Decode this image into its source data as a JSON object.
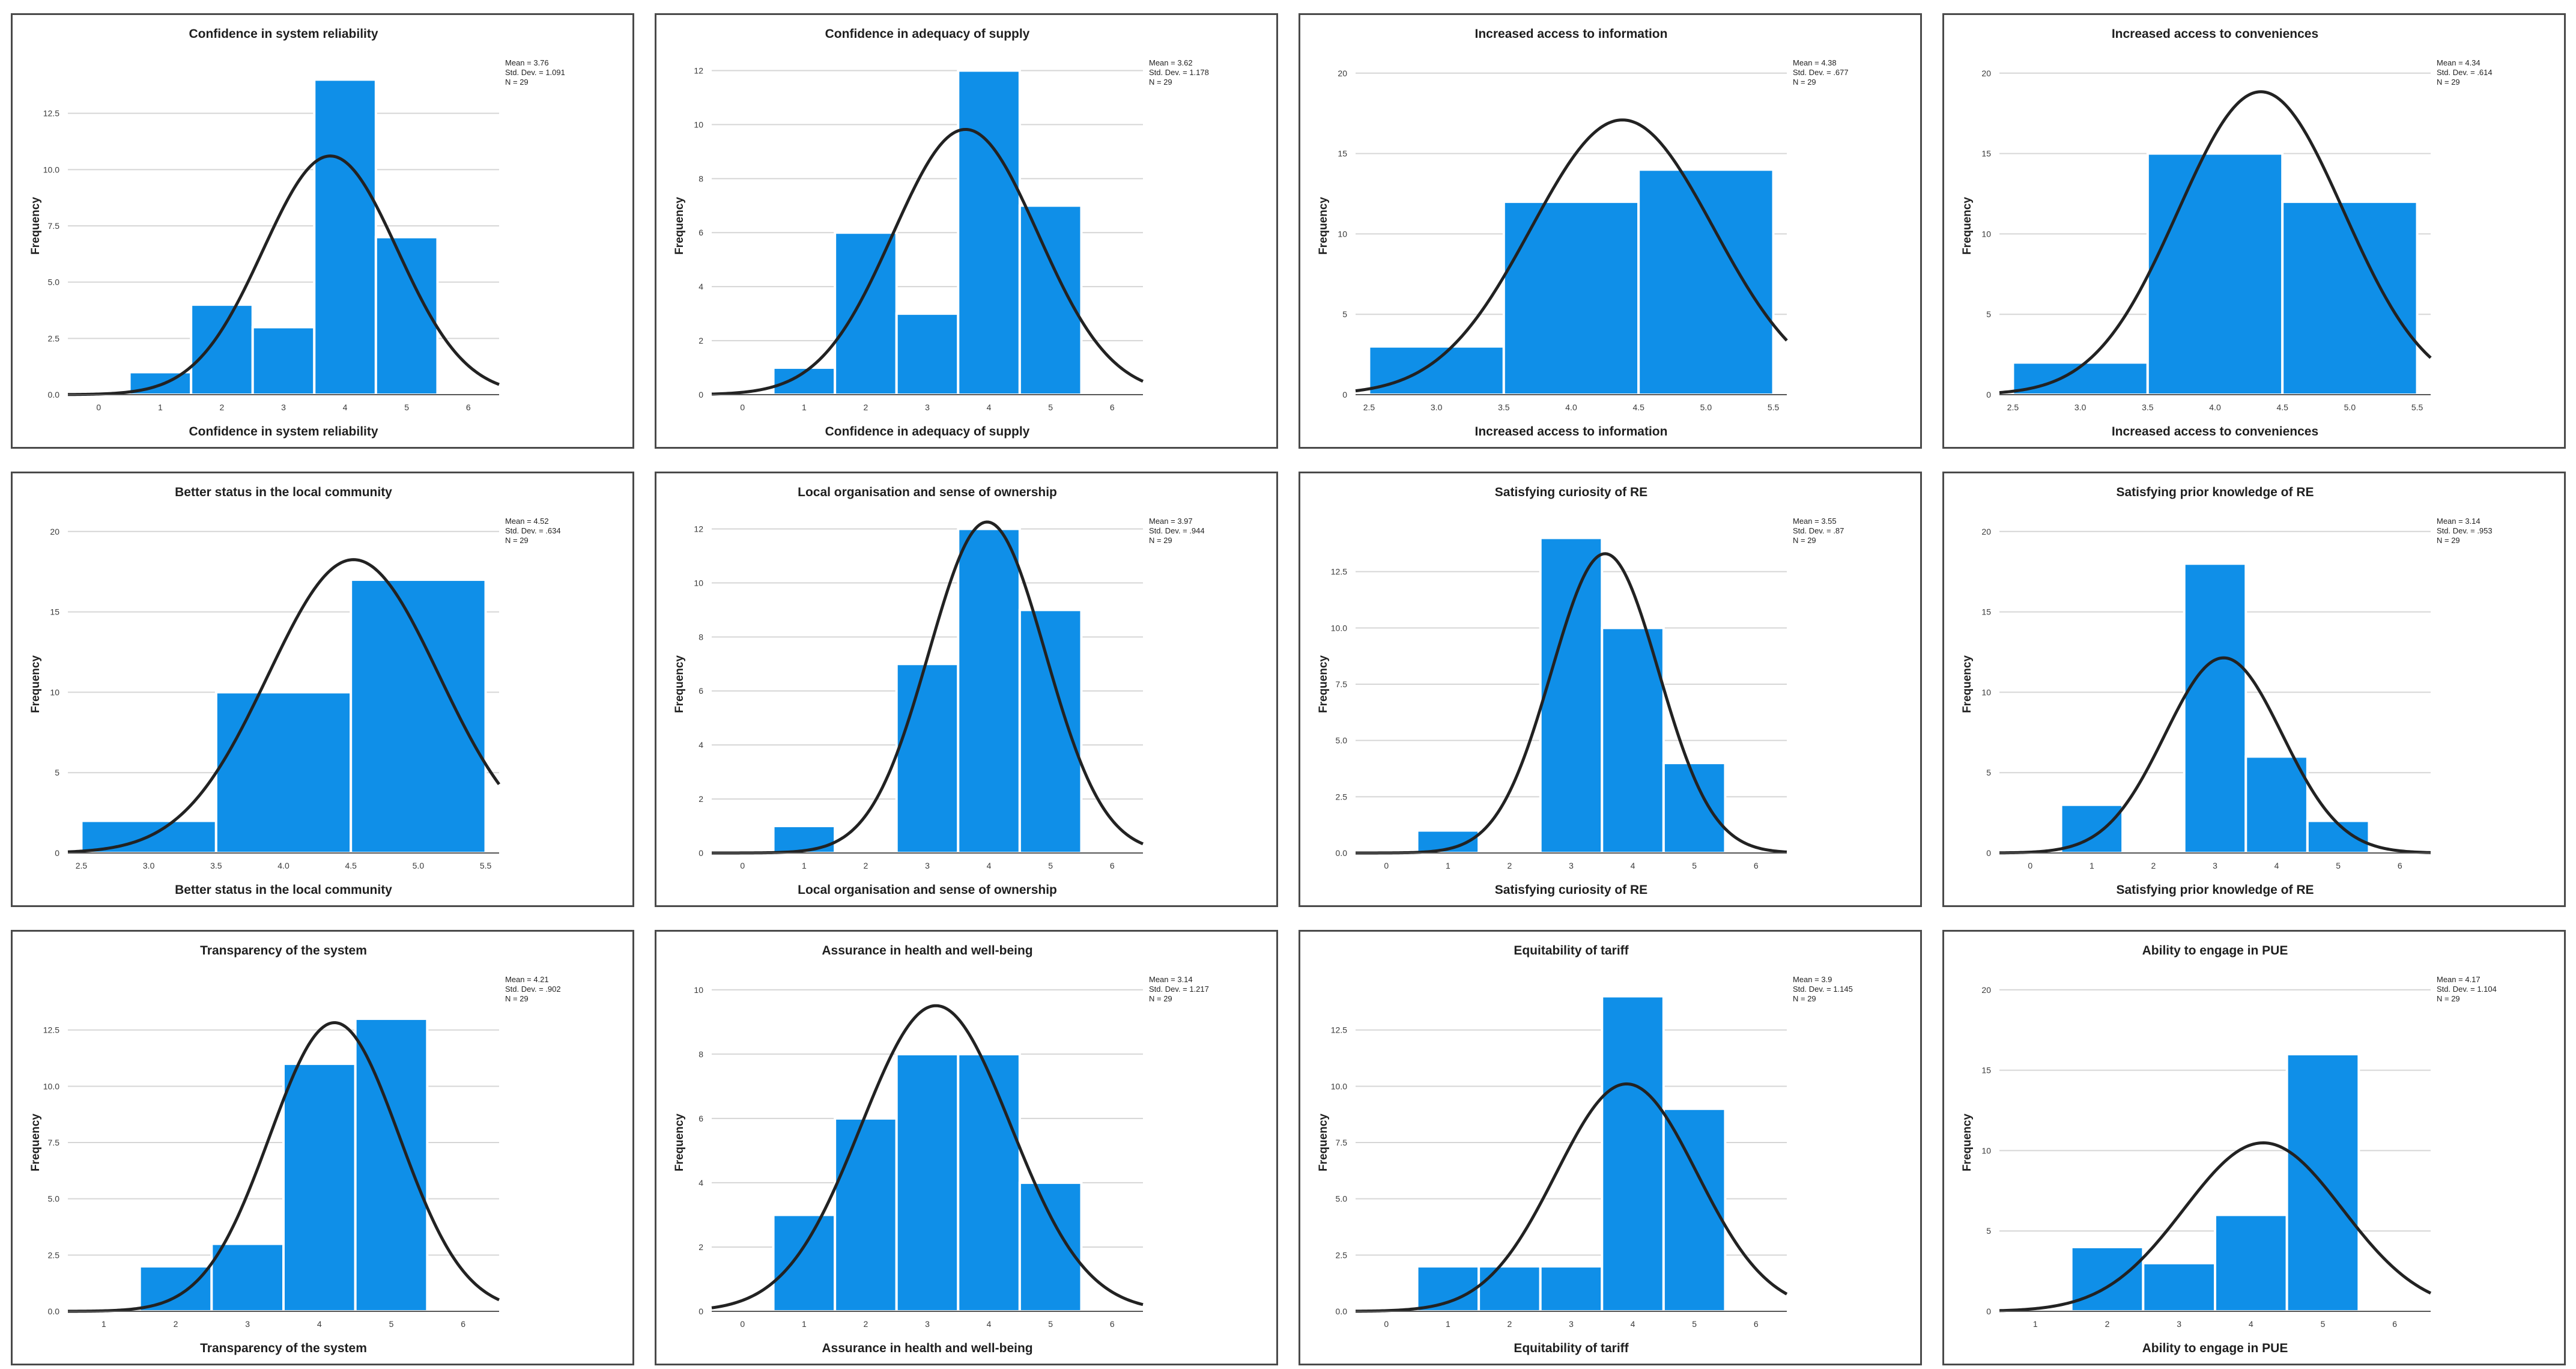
{
  "chart_data": [
    {
      "type": "bar",
      "title": "Confidence in system reliability",
      "xlabel": "Confidence in system reliability",
      "ylabel": "Frequency",
      "categories": [
        "1",
        "2",
        "3",
        "4",
        "5"
      ],
      "values": [
        1,
        4,
        3,
        14,
        7
      ],
      "bin_edges": [
        0.5,
        1.5,
        2.5,
        3.5,
        4.5,
        5.5
      ],
      "xlim": [
        -0.5,
        6.5
      ],
      "xticks": [
        "0",
        "1",
        "2",
        "3",
        "4",
        "5",
        "6"
      ],
      "xtick_values": [
        0,
        1,
        2,
        3,
        4,
        5,
        6
      ],
      "ylim": [
        0,
        15
      ],
      "yticks": [
        "0.0",
        "2.5",
        "5.0",
        "7.5",
        "10.0",
        "12.5"
      ],
      "ytick_values": [
        0,
        2.5,
        5,
        7.5,
        10,
        12.5
      ],
      "normal_curve": {
        "mean": 3.76,
        "sd": 1.091,
        "n": 29
      },
      "stats": {
        "mean": "Mean = 3.76",
        "sd": "Std. Dev. = 1.091",
        "n": "N = 29"
      }
    },
    {
      "type": "bar",
      "title": "Confidence in adequacy of supply",
      "xlabel": "Confidence in adequacy of supply",
      "ylabel": "Frequency",
      "categories": [
        "1",
        "2",
        "3",
        "4",
        "5"
      ],
      "values": [
        1,
        6,
        3,
        12,
        7
      ],
      "bin_edges": [
        0.5,
        1.5,
        2.5,
        3.5,
        4.5,
        5.5
      ],
      "xlim": [
        -0.5,
        6.5
      ],
      "xticks": [
        "0",
        "1",
        "2",
        "3",
        "4",
        "5",
        "6"
      ],
      "xtick_values": [
        0,
        1,
        2,
        3,
        4,
        5,
        6
      ],
      "ylim": [
        0,
        12.5
      ],
      "yticks": [
        "0",
        "2",
        "4",
        "6",
        "8",
        "10",
        "12"
      ],
      "ytick_values": [
        0,
        2,
        4,
        6,
        8,
        10,
        12
      ],
      "normal_curve": {
        "mean": 3.62,
        "sd": 1.178,
        "n": 29
      },
      "stats": {
        "mean": "Mean = 3.62",
        "sd": "Std. Dev. = 1.178",
        "n": "N = 29"
      }
    },
    {
      "type": "bar",
      "title": "Increased access to information",
      "xlabel": "Increased access to information",
      "ylabel": "Frequency",
      "categories": [
        "3",
        "4",
        "5"
      ],
      "values": [
        3,
        12,
        14
      ],
      "bin_edges": [
        2.5,
        3.5,
        4.5,
        5.5
      ],
      "xlim": [
        2.4,
        5.6
      ],
      "xticks": [
        "2.5",
        "3.0",
        "3.5",
        "4.0",
        "4.5",
        "5.0",
        "5.5"
      ],
      "xtick_values": [
        2.5,
        3,
        3.5,
        4,
        4.5,
        5,
        5.5
      ],
      "ylim": [
        0,
        21
      ],
      "yticks": [
        "0",
        "5",
        "10",
        "15",
        "20"
      ],
      "ytick_values": [
        0,
        5,
        10,
        15,
        20
      ],
      "normal_curve": {
        "mean": 4.38,
        "sd": 0.677,
        "n": 29
      },
      "stats": {
        "mean": "Mean = 4.38",
        "sd": "Std. Dev. = .677",
        "n": "N = 29"
      }
    },
    {
      "type": "bar",
      "title": "Increased access to conveniences",
      "xlabel": "Increased access to conveniences",
      "ylabel": "Frequency",
      "categories": [
        "3",
        "4",
        "5"
      ],
      "values": [
        2,
        15,
        12
      ],
      "bin_edges": [
        2.5,
        3.5,
        4.5,
        5.5
      ],
      "xlim": [
        2.4,
        5.6
      ],
      "xticks": [
        "2.5",
        "3.0",
        "3.5",
        "4.0",
        "4.5",
        "5.0",
        "5.5"
      ],
      "xtick_values": [
        2.5,
        3,
        3.5,
        4,
        4.5,
        5,
        5.5
      ],
      "ylim": [
        0,
        21
      ],
      "yticks": [
        "0",
        "5",
        "10",
        "15",
        "20"
      ],
      "ytick_values": [
        0,
        5,
        10,
        15,
        20
      ],
      "normal_curve": {
        "mean": 4.34,
        "sd": 0.614,
        "n": 29
      },
      "stats": {
        "mean": "Mean = 4.34",
        "sd": "Std. Dev. = .614",
        "n": "N = 29"
      }
    },
    {
      "type": "bar",
      "title": "Better status in the local community",
      "xlabel": "Better status in the local community",
      "ylabel": "Frequency",
      "categories": [
        "3",
        "4",
        "5"
      ],
      "values": [
        2,
        10,
        17
      ],
      "bin_edges": [
        2.5,
        3.5,
        4.5,
        5.5
      ],
      "xlim": [
        2.4,
        5.6
      ],
      "xticks": [
        "2.5",
        "3.0",
        "3.5",
        "4.0",
        "4.5",
        "5.0",
        "5.5"
      ],
      "xtick_values": [
        2.5,
        3,
        3.5,
        4,
        4.5,
        5,
        5.5
      ],
      "ylim": [
        0,
        21
      ],
      "yticks": [
        "0",
        "5",
        "10",
        "15",
        "20"
      ],
      "ytick_values": [
        0,
        5,
        10,
        15,
        20
      ],
      "normal_curve": {
        "mean": 4.52,
        "sd": 0.634,
        "n": 29
      },
      "stats": {
        "mean": "Mean = 4.52",
        "sd": "Std. Dev. = .634",
        "n": "N = 29"
      }
    },
    {
      "type": "bar",
      "title": "Local organisation and sense of ownership",
      "xlabel": "Local organisation and sense of ownership",
      "ylabel": "Frequency",
      "categories": [
        "1",
        "2",
        "3",
        "4",
        "5"
      ],
      "values": [
        1,
        0,
        7,
        12,
        9
      ],
      "bin_edges": [
        0.5,
        1.5,
        2.5,
        3.5,
        4.5,
        5.5
      ],
      "xlim": [
        -0.5,
        6.5
      ],
      "xticks": [
        "0",
        "1",
        "2",
        "3",
        "4",
        "5",
        "6"
      ],
      "xtick_values": [
        0,
        1,
        2,
        3,
        4,
        5,
        6
      ],
      "ylim": [
        0,
        12.5
      ],
      "yticks": [
        "0",
        "2",
        "4",
        "6",
        "8",
        "10",
        "12"
      ],
      "ytick_values": [
        0,
        2,
        4,
        6,
        8,
        10,
        12
      ],
      "normal_curve": {
        "mean": 3.97,
        "sd": 0.944,
        "n": 29
      },
      "stats": {
        "mean": "Mean = 3.97",
        "sd": "Std. Dev. = .944",
        "n": "N = 29"
      }
    },
    {
      "type": "bar",
      "title": "Satisfying curiosity of RE",
      "xlabel": "Satisfying curiosity of RE",
      "ylabel": "Frequency",
      "categories": [
        "1",
        "2",
        "3",
        "4",
        "5"
      ],
      "values": [
        1,
        0,
        14,
        10,
        4
      ],
      "bin_edges": [
        0.5,
        1.5,
        2.5,
        3.5,
        4.5,
        5.5
      ],
      "xlim": [
        -0.5,
        6.5
      ],
      "xticks": [
        "0",
        "1",
        "2",
        "3",
        "4",
        "5",
        "6"
      ],
      "xtick_values": [
        0,
        1,
        2,
        3,
        4,
        5,
        6
      ],
      "ylim": [
        0,
        15
      ],
      "yticks": [
        "0.0",
        "2.5",
        "5.0",
        "7.5",
        "10.0",
        "12.5"
      ],
      "ytick_values": [
        0,
        2.5,
        5,
        7.5,
        10,
        12.5
      ],
      "normal_curve": {
        "mean": 3.55,
        "sd": 0.87,
        "n": 29
      },
      "stats": {
        "mean": "Mean = 3.55",
        "sd": "Std. Dev. = .87",
        "n": "N = 29"
      }
    },
    {
      "type": "bar",
      "title": "Satisfying prior knowledge of RE",
      "xlabel": "Satisfying prior knowledge of RE",
      "ylabel": "Frequency",
      "categories": [
        "1",
        "2",
        "3",
        "4",
        "5"
      ],
      "values": [
        3,
        0,
        18,
        6,
        2
      ],
      "bin_edges": [
        0.5,
        1.5,
        2.5,
        3.5,
        4.5,
        5.5
      ],
      "xlim": [
        -0.5,
        6.5
      ],
      "xticks": [
        "0",
        "1",
        "2",
        "3",
        "4",
        "5",
        "6"
      ],
      "xtick_values": [
        0,
        1,
        2,
        3,
        4,
        5,
        6
      ],
      "ylim": [
        0,
        21
      ],
      "yticks": [
        "0",
        "5",
        "10",
        "15",
        "20"
      ],
      "ytick_values": [
        0,
        5,
        10,
        15,
        20
      ],
      "normal_curve": {
        "mean": 3.14,
        "sd": 0.953,
        "n": 29
      },
      "stats": {
        "mean": "Mean = 3.14",
        "sd": "Std. Dev. = .953",
        "n": "N = 29"
      }
    },
    {
      "type": "bar",
      "title": "Transparency of the system",
      "xlabel": "Transparency of the system",
      "ylabel": "Frequency",
      "categories": [
        "2",
        "3",
        "4",
        "5"
      ],
      "values": [
        2,
        3,
        11,
        13
      ],
      "bin_edges": [
        1.5,
        2.5,
        3.5,
        4.5,
        5.5
      ],
      "xlim": [
        0.5,
        6.5
      ],
      "xticks": [
        "1",
        "2",
        "3",
        "4",
        "5",
        "6"
      ],
      "xtick_values": [
        1,
        2,
        3,
        4,
        5,
        6
      ],
      "ylim": [
        0,
        15
      ],
      "yticks": [
        "0.0",
        "2.5",
        "5.0",
        "7.5",
        "10.0",
        "12.5"
      ],
      "ytick_values": [
        0,
        2.5,
        5,
        7.5,
        10,
        12.5
      ],
      "normal_curve": {
        "mean": 4.21,
        "sd": 0.902,
        "n": 29
      },
      "stats": {
        "mean": "Mean = 4.21",
        "sd": "Std. Dev. = .902",
        "n": "N = 29"
      }
    },
    {
      "type": "bar",
      "title": "Assurance in health and well-being",
      "xlabel": "Assurance in health and well-being",
      "ylabel": "Frequency",
      "categories": [
        "1",
        "2",
        "3",
        "4",
        "5"
      ],
      "values": [
        3,
        6,
        8,
        8,
        4
      ],
      "bin_edges": [
        0.5,
        1.5,
        2.5,
        3.5,
        4.5,
        5.5
      ],
      "xlim": [
        -0.5,
        6.5
      ],
      "xticks": [
        "0",
        "1",
        "2",
        "3",
        "4",
        "5",
        "6"
      ],
      "xtick_values": [
        0,
        1,
        2,
        3,
        4,
        5,
        6
      ],
      "ylim": [
        0,
        10.5
      ],
      "yticks": [
        "0",
        "2",
        "4",
        "6",
        "8",
        "10"
      ],
      "ytick_values": [
        0,
        2,
        4,
        6,
        8,
        10
      ],
      "normal_curve": {
        "mean": 3.14,
        "sd": 1.217,
        "n": 29
      },
      "stats": {
        "mean": "Mean = 3.14",
        "sd": "Std. Dev. = 1.217",
        "n": "N = 29"
      }
    },
    {
      "type": "bar",
      "title": "Equitability of tariff",
      "xlabel": "Equitability of tariff",
      "ylabel": "Frequency",
      "categories": [
        "1",
        "2",
        "3",
        "4",
        "5"
      ],
      "values": [
        2,
        2,
        2,
        14,
        9
      ],
      "bin_edges": [
        0.5,
        1.5,
        2.5,
        3.5,
        4.5,
        5.5
      ],
      "xlim": [
        -0.5,
        6.5
      ],
      "xticks": [
        "0",
        "1",
        "2",
        "3",
        "4",
        "5",
        "6"
      ],
      "xtick_values": [
        0,
        1,
        2,
        3,
        4,
        5,
        6
      ],
      "ylim": [
        0,
        15
      ],
      "yticks": [
        "0.0",
        "2.5",
        "5.0",
        "7.5",
        "10.0",
        "12.5"
      ],
      "ytick_values": [
        0,
        2.5,
        5,
        7.5,
        10,
        12.5
      ],
      "normal_curve": {
        "mean": 3.9,
        "sd": 1.145,
        "n": 29
      },
      "stats": {
        "mean": "Mean = 3.9",
        "sd": "Std. Dev. = 1.145",
        "n": "N = 29"
      }
    },
    {
      "type": "bar",
      "title": "Ability to engage in PUE",
      "xlabel": "Ability to engage in PUE",
      "ylabel": "Frequency",
      "categories": [
        "2",
        "3",
        "4",
        "5"
      ],
      "values": [
        4,
        3,
        6,
        16
      ],
      "bin_edges": [
        1.5,
        2.5,
        3.5,
        4.5,
        5.5
      ],
      "xlim": [
        0.5,
        6.5
      ],
      "xticks": [
        "1",
        "2",
        "3",
        "4",
        "5",
        "6"
      ],
      "xtick_values": [
        1,
        2,
        3,
        4,
        5,
        6
      ],
      "ylim": [
        0,
        21
      ],
      "yticks": [
        "0",
        "5",
        "10",
        "15",
        "20"
      ],
      "ytick_values": [
        0,
        5,
        10,
        15,
        20
      ],
      "normal_curve": {
        "mean": 4.17,
        "sd": 1.104,
        "n": 29
      },
      "stats": {
        "mean": "Mean = 4.17",
        "sd": "Std. Dev. = 1.104",
        "n": "N = 29"
      }
    }
  ],
  "colors": {
    "bar": "#0f8fe8",
    "bar_edge": "#ffffff",
    "curve": "#222222",
    "grid": "#d6d6d6",
    "axis": "#555555",
    "border": "#4a4a4a"
  }
}
